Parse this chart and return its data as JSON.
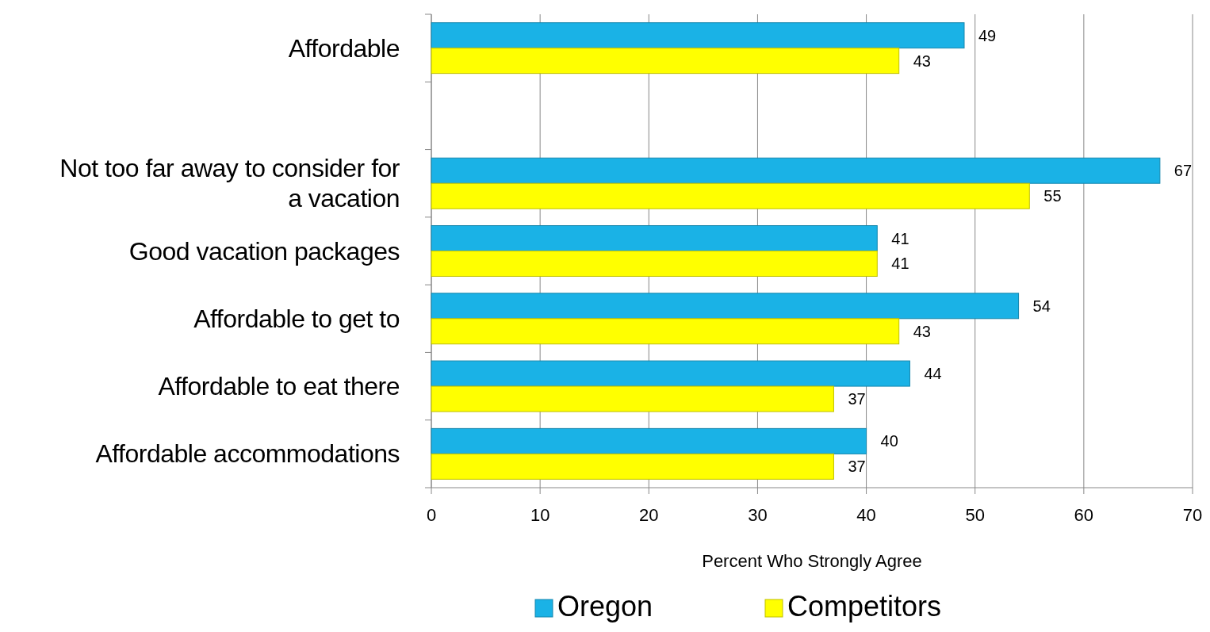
{
  "chart_data": {
    "type": "bar",
    "orientation": "horizontal",
    "xlabel": "Percent Who Strongly Agree",
    "categories": [
      "Affordable",
      null,
      "Not too far away to consider for a vacation",
      "Good vacation packages",
      "Affordable to get to",
      "Affordable to eat there",
      "Affordable accommodations"
    ],
    "series": [
      {
        "name": "Oregon",
        "color": "#1ab2e6",
        "values": [
          49,
          null,
          67,
          41,
          54,
          44,
          40
        ]
      },
      {
        "name": "Competitors",
        "color": "#ffff00",
        "values": [
          43,
          null,
          55,
          41,
          43,
          37,
          37
        ]
      }
    ],
    "xlim": [
      0,
      70
    ],
    "xticks": [
      0,
      10,
      20,
      30,
      40,
      50,
      60,
      70
    ],
    "grid": "x",
    "data_labels": true,
    "legend": "bottom"
  }
}
